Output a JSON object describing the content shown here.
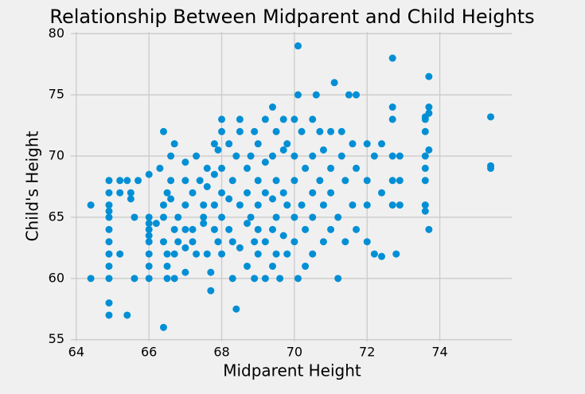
{
  "chart_data": {
    "type": "scatter",
    "title": "Relationship Between Midparent and Child Heights",
    "xlabel": "Midparent Height",
    "ylabel": "Child's Height",
    "color": "#008fd5",
    "grid": true,
    "xlim": [
      63.85,
      75.98
    ],
    "ylim": [
      54.85,
      80.15
    ],
    "xticks": [
      64,
      66,
      68,
      70,
      72,
      74
    ],
    "yticks": [
      55,
      60,
      65,
      70,
      75,
      80
    ],
    "x": [
      64.4,
      64.4,
      64.9,
      64.9,
      64.9,
      64.9,
      64.9,
      64.9,
      64.9,
      64.9,
      64.9,
      64.9,
      64.9,
      64.9,
      65.2,
      65.2,
      65.2,
      65.4,
      65.4,
      65.5,
      65.5,
      65.6,
      65.6,
      65.7,
      66.0,
      66.0,
      66.0,
      66.0,
      66.0,
      66.0,
      66.0,
      66.0,
      66.0,
      66.2,
      66.3,
      66.4,
      66.4,
      66.4,
      66.4,
      66.4,
      66.5,
      66.5,
      66.5,
      66.5,
      66.6,
      66.6,
      66.6,
      66.7,
      66.7,
      66.7,
      66.7,
      66.8,
      66.8,
      67.0,
      67.0,
      67.0,
      67.0,
      67.0,
      67.0,
      67.2,
      67.2,
      67.2,
      67.3,
      67.3,
      67.4,
      67.5,
      67.5,
      67.5,
      67.6,
      67.6,
      67.6,
      67.7,
      67.7,
      67.8,
      67.8,
      67.8,
      67.8,
      67.9,
      67.9,
      68.0,
      68.0,
      68.0,
      68.0,
      68.0,
      68.0,
      68.2,
      68.2,
      68.2,
      68.3,
      68.3,
      68.3,
      68.4,
      68.4,
      68.5,
      68.5,
      68.5,
      68.5,
      68.7,
      68.7,
      68.7,
      68.7,
      68.8,
      68.8,
      68.9,
      68.9,
      68.9,
      69.0,
      69.0,
      69.0,
      69.0,
      69.0,
      69.2,
      69.2,
      69.2,
      69.2,
      69.2,
      69.4,
      69.4,
      69.4,
      69.4,
      69.4,
      69.5,
      69.5,
      69.5,
      69.5,
      69.6,
      69.7,
      69.7,
      69.7,
      69.7,
      69.8,
      69.8,
      69.8,
      70.0,
      70.0,
      70.0,
      70.0,
      70.0,
      70.1,
      70.1,
      70.1,
      70.2,
      70.2,
      70.3,
      70.3,
      70.3,
      70.5,
      70.5,
      70.5,
      70.5,
      70.5,
      70.6,
      70.7,
      70.7,
      70.8,
      70.8,
      70.8,
      71.0,
      71.0,
      71.0,
      71.0,
      71.1,
      71.2,
      71.2,
      71.3,
      71.3,
      71.4,
      71.4,
      71.5,
      71.6,
      71.6,
      71.7,
      71.7,
      71.7,
      72.0,
      72.0,
      72.0,
      72.0,
      72.2,
      72.2,
      72.4,
      72.4,
      72.4,
      72.7,
      72.7,
      72.7,
      72.7,
      72.7,
      72.7,
      72.8,
      72.9,
      72.9,
      72.9,
      73.6,
      73.6,
      73.6,
      73.6,
      73.6,
      73.6,
      73.6,
      73.6,
      73.7,
      73.7,
      73.7,
      73.7,
      73.7,
      75.4,
      75.4,
      75.4
    ],
    "values": [
      66,
      60,
      68,
      67,
      66,
      65.5,
      65,
      64,
      63,
      62,
      61,
      60,
      58,
      57,
      68,
      67,
      62,
      57,
      68,
      67,
      66.5,
      65,
      60,
      68,
      68.5,
      65,
      64.5,
      64,
      63.5,
      63,
      62,
      61,
      60,
      64.5,
      69,
      72,
      66,
      65,
      63,
      56,
      60,
      61,
      62,
      67,
      70,
      68,
      66.5,
      71,
      64,
      62,
      60,
      65,
      63,
      69.5,
      68,
      66,
      64,
      62.5,
      60.5,
      67,
      64,
      63,
      70,
      62,
      68,
      66,
      65,
      64.5,
      69,
      67.5,
      62,
      59,
      60.5,
      71,
      68.5,
      66,
      64,
      70.5,
      63,
      73,
      72,
      69,
      67,
      65,
      62,
      71,
      66.5,
      64,
      63,
      60,
      68,
      57.5,
      70,
      72,
      73,
      66,
      62.5,
      69,
      67,
      64.5,
      61,
      70,
      65,
      72,
      63,
      60,
      71,
      68,
      66,
      64,
      62,
      73,
      69.5,
      67,
      63,
      60,
      74,
      70,
      66.5,
      64,
      61,
      72,
      68,
      65,
      62,
      60,
      73,
      70.5,
      67,
      63.5,
      71,
      66,
      62,
      73,
      70,
      68,
      65,
      63,
      79,
      75,
      60,
      72,
      66,
      69,
      64,
      61,
      73,
      70,
      67,
      65,
      62,
      75,
      72,
      68,
      70.5,
      66,
      63,
      72,
      69,
      67,
      64,
      76,
      60,
      65,
      72,
      70,
      68,
      63,
      75,
      71,
      66,
      75,
      69,
      64,
      71,
      68,
      66,
      63,
      62,
      70,
      71,
      67,
      61.8,
      78,
      74,
      73,
      70,
      68,
      66,
      62,
      70,
      68,
      66,
      73.2,
      73,
      72,
      70,
      69,
      68,
      66,
      65.5,
      76.5,
      74,
      73.5,
      70.5,
      64,
      73.2,
      69.2,
      69
    ]
  }
}
